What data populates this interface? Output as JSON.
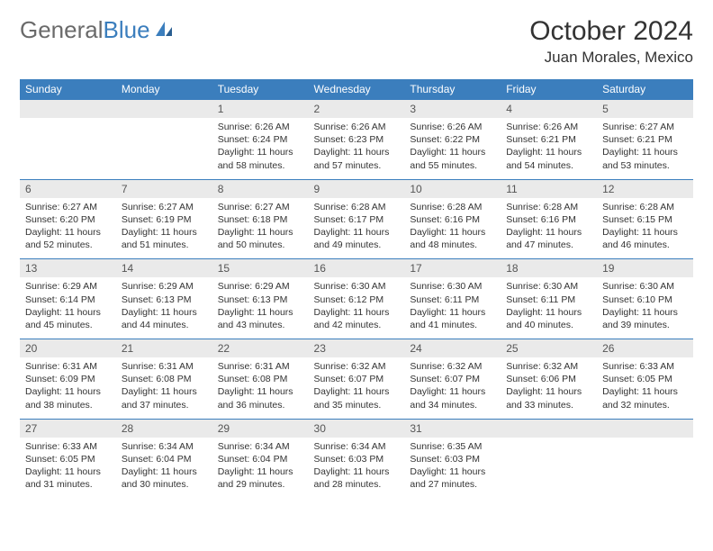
{
  "logo": {
    "text1": "General",
    "text2": "Blue"
  },
  "title": "October 2024",
  "location": "Juan Morales, Mexico",
  "colors": {
    "header_bg": "#3b7ebd",
    "header_fg": "#ffffff",
    "daynum_bg": "#eaeaea",
    "border": "#3b7ebd",
    "text": "#333333",
    "logo_gray": "#6a6a6a"
  },
  "typography": {
    "title_fontsize": 30,
    "location_fontsize": 17,
    "dayheader_fontsize": 12,
    "cell_fontsize": 10.5
  },
  "day_headers": [
    "Sunday",
    "Monday",
    "Tuesday",
    "Wednesday",
    "Thursday",
    "Friday",
    "Saturday"
  ],
  "weeks": [
    [
      {
        "num": "",
        "lines": []
      },
      {
        "num": "",
        "lines": []
      },
      {
        "num": "1",
        "lines": [
          "Sunrise: 6:26 AM",
          "Sunset: 6:24 PM",
          "Daylight: 11 hours and 58 minutes."
        ]
      },
      {
        "num": "2",
        "lines": [
          "Sunrise: 6:26 AM",
          "Sunset: 6:23 PM",
          "Daylight: 11 hours and 57 minutes."
        ]
      },
      {
        "num": "3",
        "lines": [
          "Sunrise: 6:26 AM",
          "Sunset: 6:22 PM",
          "Daylight: 11 hours and 55 minutes."
        ]
      },
      {
        "num": "4",
        "lines": [
          "Sunrise: 6:26 AM",
          "Sunset: 6:21 PM",
          "Daylight: 11 hours and 54 minutes."
        ]
      },
      {
        "num": "5",
        "lines": [
          "Sunrise: 6:27 AM",
          "Sunset: 6:21 PM",
          "Daylight: 11 hours and 53 minutes."
        ]
      }
    ],
    [
      {
        "num": "6",
        "lines": [
          "Sunrise: 6:27 AM",
          "Sunset: 6:20 PM",
          "Daylight: 11 hours and 52 minutes."
        ]
      },
      {
        "num": "7",
        "lines": [
          "Sunrise: 6:27 AM",
          "Sunset: 6:19 PM",
          "Daylight: 11 hours and 51 minutes."
        ]
      },
      {
        "num": "8",
        "lines": [
          "Sunrise: 6:27 AM",
          "Sunset: 6:18 PM",
          "Daylight: 11 hours and 50 minutes."
        ]
      },
      {
        "num": "9",
        "lines": [
          "Sunrise: 6:28 AM",
          "Sunset: 6:17 PM",
          "Daylight: 11 hours and 49 minutes."
        ]
      },
      {
        "num": "10",
        "lines": [
          "Sunrise: 6:28 AM",
          "Sunset: 6:16 PM",
          "Daylight: 11 hours and 48 minutes."
        ]
      },
      {
        "num": "11",
        "lines": [
          "Sunrise: 6:28 AM",
          "Sunset: 6:16 PM",
          "Daylight: 11 hours and 47 minutes."
        ]
      },
      {
        "num": "12",
        "lines": [
          "Sunrise: 6:28 AM",
          "Sunset: 6:15 PM",
          "Daylight: 11 hours and 46 minutes."
        ]
      }
    ],
    [
      {
        "num": "13",
        "lines": [
          "Sunrise: 6:29 AM",
          "Sunset: 6:14 PM",
          "Daylight: 11 hours and 45 minutes."
        ]
      },
      {
        "num": "14",
        "lines": [
          "Sunrise: 6:29 AM",
          "Sunset: 6:13 PM",
          "Daylight: 11 hours and 44 minutes."
        ]
      },
      {
        "num": "15",
        "lines": [
          "Sunrise: 6:29 AM",
          "Sunset: 6:13 PM",
          "Daylight: 11 hours and 43 minutes."
        ]
      },
      {
        "num": "16",
        "lines": [
          "Sunrise: 6:30 AM",
          "Sunset: 6:12 PM",
          "Daylight: 11 hours and 42 minutes."
        ]
      },
      {
        "num": "17",
        "lines": [
          "Sunrise: 6:30 AM",
          "Sunset: 6:11 PM",
          "Daylight: 11 hours and 41 minutes."
        ]
      },
      {
        "num": "18",
        "lines": [
          "Sunrise: 6:30 AM",
          "Sunset: 6:11 PM",
          "Daylight: 11 hours and 40 minutes."
        ]
      },
      {
        "num": "19",
        "lines": [
          "Sunrise: 6:30 AM",
          "Sunset: 6:10 PM",
          "Daylight: 11 hours and 39 minutes."
        ]
      }
    ],
    [
      {
        "num": "20",
        "lines": [
          "Sunrise: 6:31 AM",
          "Sunset: 6:09 PM",
          "Daylight: 11 hours and 38 minutes."
        ]
      },
      {
        "num": "21",
        "lines": [
          "Sunrise: 6:31 AM",
          "Sunset: 6:08 PM",
          "Daylight: 11 hours and 37 minutes."
        ]
      },
      {
        "num": "22",
        "lines": [
          "Sunrise: 6:31 AM",
          "Sunset: 6:08 PM",
          "Daylight: 11 hours and 36 minutes."
        ]
      },
      {
        "num": "23",
        "lines": [
          "Sunrise: 6:32 AM",
          "Sunset: 6:07 PM",
          "Daylight: 11 hours and 35 minutes."
        ]
      },
      {
        "num": "24",
        "lines": [
          "Sunrise: 6:32 AM",
          "Sunset: 6:07 PM",
          "Daylight: 11 hours and 34 minutes."
        ]
      },
      {
        "num": "25",
        "lines": [
          "Sunrise: 6:32 AM",
          "Sunset: 6:06 PM",
          "Daylight: 11 hours and 33 minutes."
        ]
      },
      {
        "num": "26",
        "lines": [
          "Sunrise: 6:33 AM",
          "Sunset: 6:05 PM",
          "Daylight: 11 hours and 32 minutes."
        ]
      }
    ],
    [
      {
        "num": "27",
        "lines": [
          "Sunrise: 6:33 AM",
          "Sunset: 6:05 PM",
          "Daylight: 11 hours and 31 minutes."
        ]
      },
      {
        "num": "28",
        "lines": [
          "Sunrise: 6:34 AM",
          "Sunset: 6:04 PM",
          "Daylight: 11 hours and 30 minutes."
        ]
      },
      {
        "num": "29",
        "lines": [
          "Sunrise: 6:34 AM",
          "Sunset: 6:04 PM",
          "Daylight: 11 hours and 29 minutes."
        ]
      },
      {
        "num": "30",
        "lines": [
          "Sunrise: 6:34 AM",
          "Sunset: 6:03 PM",
          "Daylight: 11 hours and 28 minutes."
        ]
      },
      {
        "num": "31",
        "lines": [
          "Sunrise: 6:35 AM",
          "Sunset: 6:03 PM",
          "Daylight: 11 hours and 27 minutes."
        ]
      },
      {
        "num": "",
        "lines": []
      },
      {
        "num": "",
        "lines": []
      }
    ]
  ]
}
